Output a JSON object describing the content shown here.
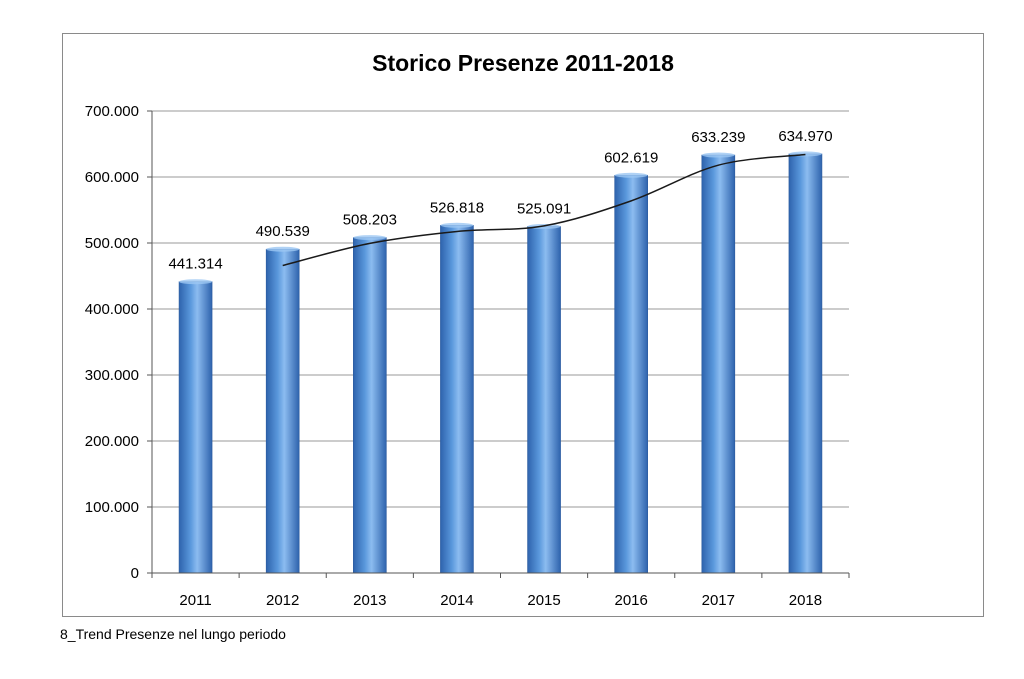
{
  "chart_data": {
    "type": "bar",
    "title": "Storico Presenze 2011-2018",
    "categories": [
      "2011",
      "2012",
      "2013",
      "2014",
      "2015",
      "2016",
      "2017",
      "2018"
    ],
    "values": [
      441314,
      490539,
      508203,
      526818,
      525091,
      602619,
      633239,
      634970
    ],
    "value_labels": [
      "441.314",
      "490.539",
      "508.203",
      "526.818",
      "525.091",
      "602.619",
      "633.239",
      "634.970"
    ],
    "y_ticks": [
      0,
      100000,
      200000,
      300000,
      400000,
      500000,
      600000,
      700000
    ],
    "y_tick_labels": [
      "0",
      "100.000",
      "200.000",
      "300.000",
      "400.000",
      "500.000",
      "600.000",
      "700.000"
    ],
    "ylim": [
      0,
      700000
    ],
    "xlabel": "",
    "ylabel": "",
    "grid": true,
    "legend": "none",
    "trendline": {
      "type": "moving-average",
      "period": 2,
      "values": [
        null,
        465926.5,
        499371,
        517510.5,
        525954.5,
        563855,
        617929,
        634104.5
      ]
    },
    "colors": {
      "bar_dark": "#2e63ad",
      "bar_mid": "#4f8fd6",
      "bar_light": "#8cbcf0",
      "trendline": "#1a1a1a",
      "grid": "#9a9a9a"
    }
  },
  "caption": "8_Trend Presenze nel lungo periodo"
}
